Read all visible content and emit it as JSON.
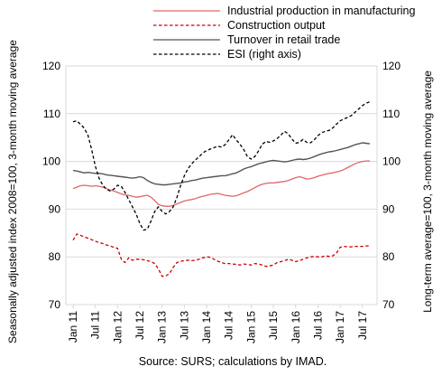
{
  "colors": {
    "industrial": "#e06666",
    "construction": "#cc0000",
    "retail": "#555555",
    "esi": "#000000",
    "grid": "#d9d9d9"
  },
  "chart_data": {
    "type": "line",
    "ylabel": "Seasonally adjusted index 2008=100, 3-month moving average",
    "y2label": "Long-term average=100, 3-month moving average",
    "source": "Source: SURS; calculations by IMAD.",
    "ylim": [
      70,
      120
    ],
    "y2lim": [
      70,
      120
    ],
    "yticks": [
      70,
      80,
      90,
      100,
      110,
      120
    ],
    "grid": "horizontal",
    "legend_position": "top",
    "x_tick_labels": [
      "Jan 11",
      "Jul 11",
      "Jan 12",
      "Jul 12",
      "Jan 13",
      "Jul 13",
      "Jan 14",
      "Jul 14",
      "Jan 15",
      "Jul 15",
      "Jan 16",
      "Jul 16",
      "Jan 17",
      "Jul 17"
    ],
    "x_start": "Jan 11",
    "x_end": "Aug 17",
    "series": [
      {
        "name": "Industrial production in manufacturing",
        "color_key": "industrial",
        "style": "solid",
        "axis": "left",
        "values": [
          94.3,
          94.6,
          94.9,
          95.0,
          94.9,
          94.8,
          94.9,
          94.8,
          94.6,
          94.3,
          94.0,
          93.8,
          93.5,
          93.2,
          93.0,
          92.9,
          92.7,
          92.5,
          92.6,
          92.8,
          92.9,
          92.5,
          91.8,
          91.0,
          90.7,
          90.6,
          90.6,
          90.8,
          91.1,
          91.4,
          91.7,
          91.9,
          92.0,
          92.2,
          92.5,
          92.7,
          92.9,
          93.1,
          93.2,
          93.3,
          93.1,
          92.9,
          92.8,
          92.7,
          92.8,
          93.1,
          93.4,
          93.7,
          94.1,
          94.5,
          94.9,
          95.2,
          95.4,
          95.5,
          95.5,
          95.6,
          95.7,
          95.8,
          96.0,
          96.3,
          96.6,
          96.8,
          96.6,
          96.3,
          96.4,
          96.6,
          96.9,
          97.1,
          97.3,
          97.5,
          97.6,
          97.8,
          98.0,
          98.3,
          98.7,
          99.1,
          99.5,
          99.8,
          100.0,
          100.1,
          100.1
        ]
      },
      {
        "name": "Construction output",
        "color_key": "construction",
        "style": "dashed",
        "axis": "left",
        "values": [
          83.5,
          84.8,
          84.5,
          84.2,
          83.9,
          83.6,
          83.3,
          83.0,
          82.8,
          82.5,
          82.3,
          82.0,
          81.8,
          79.5,
          78.8,
          79.8,
          79.3,
          79.5,
          79.5,
          79.4,
          79.2,
          79.0,
          78.6,
          77.5,
          75.9,
          76.0,
          76.5,
          77.8,
          78.8,
          79.1,
          79.2,
          79.3,
          79.2,
          79.3,
          79.5,
          79.8,
          80.0,
          79.9,
          79.5,
          79.1,
          78.8,
          78.6,
          78.6,
          78.5,
          78.4,
          78.3,
          78.5,
          78.4,
          78.3,
          78.6,
          78.5,
          78.3,
          78.0,
          78.1,
          78.3,
          78.8,
          79.0,
          79.2,
          79.5,
          79.3,
          79.0,
          79.2,
          79.5,
          79.8,
          80.0,
          80.1,
          80.0,
          80.0,
          80.2,
          80.1,
          80.2,
          80.8,
          82.0,
          82.2,
          82.1,
          82.1,
          82.2,
          82.2,
          82.2,
          82.3,
          82.3
        ]
      },
      {
        "name": "Turnover in retail trade",
        "color_key": "retail",
        "style": "solid",
        "axis": "left",
        "values": [
          98.1,
          98.0,
          97.8,
          97.6,
          97.7,
          97.6,
          97.5,
          97.5,
          97.4,
          97.2,
          97.1,
          97.0,
          96.9,
          96.8,
          96.7,
          96.6,
          96.5,
          96.6,
          96.8,
          96.6,
          96.0,
          95.6,
          95.3,
          95.2,
          95.1,
          95.1,
          95.2,
          95.3,
          95.4,
          95.5,
          95.7,
          95.8,
          96.0,
          96.1,
          96.3,
          96.5,
          96.6,
          96.7,
          96.8,
          96.9,
          97.0,
          97.0,
          97.2,
          97.4,
          97.6,
          98.0,
          98.4,
          98.7,
          98.9,
          99.2,
          99.5,
          99.7,
          99.9,
          100.1,
          100.2,
          100.1,
          100.0,
          99.9,
          100.0,
          100.2,
          100.4,
          100.5,
          100.4,
          100.5,
          100.7,
          101.0,
          101.3,
          101.6,
          101.8,
          102.0,
          102.1,
          102.3,
          102.5,
          102.7,
          102.9,
          103.2,
          103.5,
          103.7,
          103.9,
          103.8,
          103.7
        ]
      },
      {
        "name": "ESI (right axis)",
        "color_key": "esi",
        "style": "dashed",
        "axis": "right",
        "values": [
          108.3,
          108.5,
          107.8,
          107.0,
          105.5,
          102.5,
          99.0,
          96.5,
          95.0,
          94.2,
          93.8,
          94.2,
          95.0,
          94.8,
          93.5,
          92.0,
          90.5,
          89.0,
          87.0,
          85.6,
          85.8,
          87.5,
          89.5,
          90.5,
          89.5,
          89.0,
          89.5,
          90.5,
          92.5,
          95.0,
          97.0,
          98.5,
          99.5,
          100.3,
          101.0,
          101.8,
          102.3,
          102.6,
          102.9,
          103.2,
          103.0,
          103.5,
          104.5,
          105.6,
          104.5,
          103.6,
          102.5,
          101.0,
          100.5,
          101.0,
          102.2,
          103.6,
          104.2,
          104.0,
          104.3,
          104.8,
          105.5,
          106.3,
          105.8,
          104.7,
          103.8,
          104.0,
          104.6,
          104.0,
          103.9,
          104.5,
          105.4,
          106.0,
          106.3,
          106.5,
          107.0,
          107.8,
          108.5,
          108.9,
          109.2,
          109.6,
          110.3,
          111.0,
          111.7,
          112.2,
          112.5
        ]
      }
    ]
  }
}
